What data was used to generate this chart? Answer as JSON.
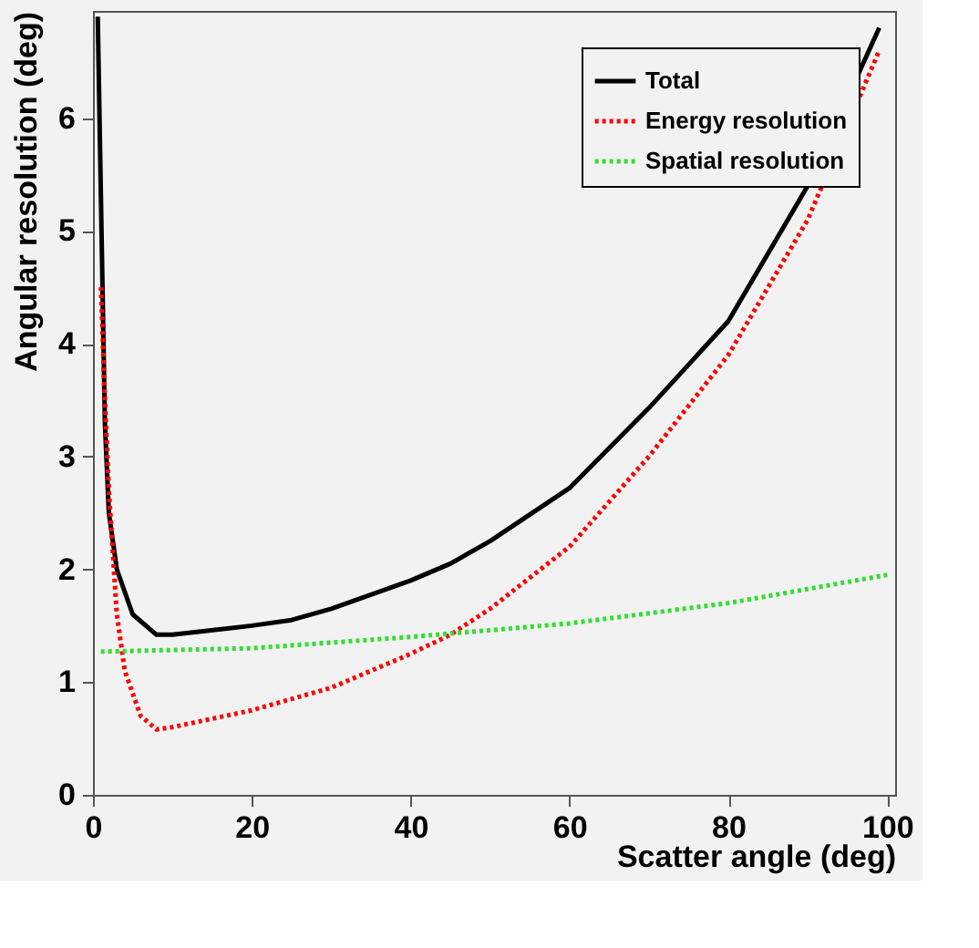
{
  "chart_data": {
    "type": "line",
    "xlabel": "Scatter angle (deg)",
    "ylabel": "Angular resolution (deg)",
    "xlim": [
      0,
      101
    ],
    "ylim": [
      0,
      6.95
    ],
    "xticks": [
      0,
      20,
      40,
      60,
      80,
      100
    ],
    "yticks": [
      0,
      1,
      2,
      3,
      4,
      5,
      6
    ],
    "grid": false,
    "legend": "top right",
    "marker": "none",
    "series": [
      {
        "name": "Total",
        "color": "#000000",
        "line_style": "solid",
        "x": [
          0.6,
          1,
          1.5,
          2,
          3,
          5,
          8,
          10,
          20,
          25,
          30,
          40,
          45,
          50,
          60,
          70,
          80,
          90,
          99
        ],
        "values": [
          6.9,
          5.3,
          3.3,
          2.5,
          2.0,
          1.6,
          1.42,
          1.42,
          1.5,
          1.55,
          1.65,
          1.9,
          2.05,
          2.25,
          2.72,
          3.43,
          4.2,
          5.4,
          6.8
        ]
      },
      {
        "name": "Energy resolution",
        "color": "#ff0000",
        "line_style": "dotted",
        "x": [
          1,
          1.5,
          2,
          3,
          4,
          6,
          8,
          10,
          20,
          30,
          40,
          45,
          50,
          60,
          70,
          80,
          90,
          99
        ],
        "values": [
          4.5,
          3.5,
          2.7,
          1.6,
          1.1,
          0.7,
          0.58,
          0.6,
          0.75,
          0.95,
          1.25,
          1.42,
          1.65,
          2.2,
          3.0,
          3.9,
          5.1,
          6.6
        ]
      },
      {
        "name": "Spatial resolution",
        "color": "#33dd33",
        "line_style": "dotted",
        "x": [
          1,
          20,
          40,
          60,
          80,
          100
        ],
        "values": [
          1.27,
          1.3,
          1.4,
          1.52,
          1.7,
          1.95
        ]
      }
    ]
  }
}
